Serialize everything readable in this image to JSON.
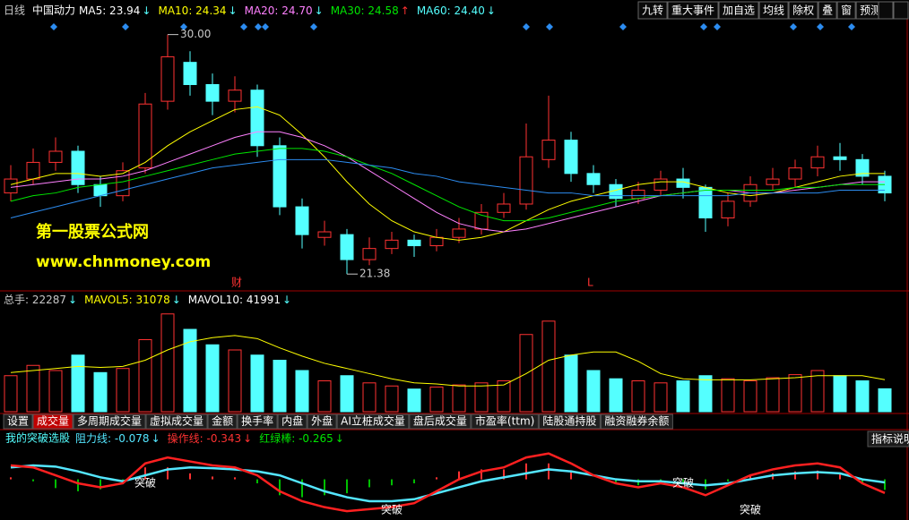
{
  "header": {
    "period": "日线",
    "stock": "中国动力",
    "ma": [
      {
        "label": "MA5: 23.94",
        "trend": "↓"
      },
      {
        "label": "MA10: 24.34",
        "trend": "↓"
      },
      {
        "label": "MA20: 24.70",
        "trend": "↓"
      },
      {
        "label": "MA30: 24.58",
        "trend": "↑"
      },
      {
        "label": "MA60: 24.40",
        "trend": "↓"
      }
    ]
  },
  "toolbar": [
    "九转",
    "重大事件",
    "加自选",
    "均线",
    "除权",
    "叠",
    "窗",
    "预测"
  ],
  "annotations": {
    "high": "30.00",
    "low": "21.38",
    "finance": "财",
    "marker": "L"
  },
  "watermark": {
    "name": "第一股票公式网",
    "url": "www.chnmoney.com"
  },
  "volume_header": [
    {
      "label": "总手: 22287",
      "trend": "↓"
    },
    {
      "label": "MAVOL5: 31078",
      "trend": "↓"
    },
    {
      "label": "MAVOL10: 41991",
      "trend": "↓"
    }
  ],
  "tabs": [
    "设置",
    "成交量",
    "多周期成交量",
    "虚拟成交量",
    "金额",
    "换手率",
    "内盘",
    "外盘",
    "AI立桩成交量",
    "盘后成交量",
    "市盈率(ttm)",
    "陆股通持股",
    "融资融券余额"
  ],
  "indicator_header": {
    "name": "我的突破选股",
    "items": [
      {
        "label": "阻力线: -0.078",
        "trend": "↓"
      },
      {
        "label": "操作线: -0.343",
        "trend": "↓"
      },
      {
        "label": "红绿棒: -0.265",
        "trend": "↓"
      }
    ],
    "help": "指标说明"
  },
  "signals": [
    "突破",
    "突破",
    "突破",
    "突破"
  ],
  "chart_data": [
    {
      "type": "candlestick",
      "ylim": [
        21.0,
        30.6
      ],
      "open": [
        24.3,
        24.8,
        25.4,
        25.8,
        24.6,
        24.2,
        25.2,
        27.6,
        29.0,
        28.2,
        27.6,
        28.0,
        26.0,
        23.8,
        22.7,
        22.8,
        21.9,
        22.3,
        22.6,
        22.4,
        22.7,
        23.0,
        23.6,
        23.9,
        25.5,
        26.2,
        25.0,
        24.6,
        24.1,
        24.4,
        24.8,
        24.5,
        23.4,
        24.0,
        24.6,
        24.8,
        25.2,
        25.6,
        25.5,
        24.9
      ],
      "high": [
        25.3,
        25.9,
        26.3,
        26.0,
        24.9,
        25.4,
        27.9,
        30.0,
        29.4,
        28.6,
        28.5,
        28.2,
        26.3,
        24.1,
        23.3,
        23.0,
        22.7,
        22.9,
        22.8,
        23.0,
        23.4,
        23.9,
        24.3,
        26.8,
        27.8,
        26.5,
        25.3,
        24.8,
        24.7,
        25.1,
        25.2,
        24.6,
        24.3,
        24.9,
        25.2,
        25.5,
        26.0,
        26.1,
        25.7,
        25.1
      ],
      "low": [
        24.0,
        24.6,
        25.1,
        24.3,
        23.8,
        24.0,
        25.0,
        27.3,
        27.8,
        27.1,
        27.2,
        25.6,
        23.5,
        22.3,
        22.4,
        21.38,
        21.7,
        22.1,
        22.0,
        22.2,
        22.5,
        22.8,
        23.4,
        23.7,
        25.2,
        24.7,
        24.3,
        23.8,
        23.9,
        24.2,
        24.1,
        22.9,
        23.1,
        23.8,
        24.4,
        24.5,
        24.9,
        25.1,
        24.6,
        24.0
      ],
      "close": [
        24.8,
        25.4,
        25.8,
        24.6,
        24.2,
        25.1,
        27.5,
        29.2,
        28.2,
        27.6,
        28.0,
        26.0,
        23.8,
        22.8,
        22.9,
        21.9,
        22.3,
        22.6,
        22.4,
        22.7,
        23.0,
        23.6,
        23.9,
        25.6,
        26.2,
        25.0,
        24.6,
        24.1,
        24.4,
        24.8,
        24.5,
        23.4,
        24.0,
        24.6,
        24.8,
        25.2,
        25.6,
        25.5,
        24.9,
        24.3
      ],
      "up_color": "#ff3232",
      "down_color": "#54ffff",
      "lines": [
        {
          "color": "#ffff00",
          "values": [
            24.6,
            24.8,
            25.0,
            25.0,
            24.9,
            25.0,
            25.4,
            26.0,
            26.5,
            26.9,
            27.3,
            27.4,
            27.1,
            26.4,
            25.6,
            24.7,
            23.9,
            23.3,
            22.9,
            22.7,
            22.6,
            22.7,
            22.9,
            23.3,
            23.7,
            24.0,
            24.2,
            24.4,
            24.6,
            24.7,
            24.7,
            24.5,
            24.3,
            24.2,
            24.3,
            24.5,
            24.7,
            24.9,
            25.0,
            25.0
          ]
        },
        {
          "color": "#ff80ff",
          "values": [
            24.5,
            24.6,
            24.7,
            24.8,
            24.8,
            24.9,
            25.1,
            25.4,
            25.7,
            26.0,
            26.3,
            26.5,
            26.5,
            26.3,
            26.0,
            25.6,
            25.1,
            24.6,
            24.1,
            23.6,
            23.2,
            23.0,
            22.9,
            23.0,
            23.2,
            23.4,
            23.6,
            23.8,
            24.0,
            24.2,
            24.3,
            24.4,
            24.4,
            24.3,
            24.3,
            24.4,
            24.5,
            24.6,
            24.7,
            24.7
          ]
        },
        {
          "color": "#00e600",
          "values": [
            24.0,
            24.2,
            24.3,
            24.5,
            24.6,
            24.7,
            24.9,
            25.1,
            25.3,
            25.5,
            25.7,
            25.8,
            25.9,
            25.9,
            25.8,
            25.6,
            25.3,
            25.0,
            24.6,
            24.2,
            23.8,
            23.5,
            23.3,
            23.3,
            23.4,
            23.6,
            23.8,
            24.0,
            24.1,
            24.2,
            24.3,
            24.4,
            24.4,
            24.4,
            24.4,
            24.5,
            24.5,
            24.6,
            24.6,
            24.6
          ]
        },
        {
          "color": "#2c8cf0",
          "values": [
            23.4,
            23.6,
            23.8,
            24.0,
            24.2,
            24.4,
            24.6,
            24.8,
            25.0,
            25.2,
            25.3,
            25.4,
            25.5,
            25.5,
            25.5,
            25.4,
            25.3,
            25.2,
            25.0,
            24.9,
            24.7,
            24.6,
            24.5,
            24.4,
            24.3,
            24.3,
            24.2,
            24.2,
            24.2,
            24.2,
            24.2,
            24.2,
            24.2,
            24.3,
            24.3,
            24.3,
            24.3,
            24.4,
            24.4,
            24.4
          ]
        }
      ]
    },
    {
      "type": "bar",
      "ylim": [
        0,
        100000
      ],
      "values": [
        35000,
        45000,
        40000,
        55000,
        38000,
        42000,
        70000,
        95000,
        80000,
        65000,
        60000,
        55000,
        50000,
        40000,
        30000,
        35000,
        28000,
        25000,
        22000,
        24000,
        26000,
        28000,
        30000,
        75000,
        88000,
        55000,
        40000,
        32000,
        30000,
        28000,
        30000,
        35000,
        32000,
        30000,
        33000,
        36000,
        40000,
        35000,
        30000,
        22287
      ],
      "lines": [
        {
          "color": "#ffff00",
          "values": [
            38000,
            40000,
            42000,
            44000,
            43000,
            44000,
            50000,
            60000,
            68000,
            72000,
            74000,
            71000,
            62000,
            54000,
            47000,
            42000,
            37000,
            32000,
            28000,
            27000,
            25000,
            25000,
            26000,
            37000,
            50000,
            55000,
            58000,
            58000,
            49000,
            37000,
            32000,
            31000,
            31000,
            31000,
            32000,
            33000,
            35000,
            35000,
            35000,
            31078
          ]
        }
      ]
    },
    {
      "type": "line",
      "ylim": [
        -1.0,
        0.8
      ],
      "series": [
        {
          "color": "#54e6ff",
          "values": [
            0.3,
            0.35,
            0.32,
            0.2,
            0.05,
            -0.05,
            0.1,
            0.25,
            0.3,
            0.28,
            0.25,
            0.2,
            0.1,
            -0.1,
            -0.3,
            -0.45,
            -0.55,
            -0.55,
            -0.5,
            -0.35,
            -0.2,
            -0.05,
            0.05,
            0.15,
            0.25,
            0.2,
            0.1,
            0.0,
            -0.05,
            -0.05,
            -0.1,
            -0.15,
            -0.1,
            0.0,
            0.1,
            0.15,
            0.18,
            0.15,
            0.0,
            -0.078
          ]
        },
        {
          "color": "#ff2020",
          "values": [
            0.35,
            0.3,
            0.1,
            -0.1,
            -0.2,
            -0.1,
            0.4,
            0.55,
            0.45,
            0.35,
            0.3,
            0.1,
            -0.3,
            -0.55,
            -0.7,
            -0.8,
            -0.75,
            -0.7,
            -0.6,
            -0.3,
            0.0,
            0.2,
            0.3,
            0.55,
            0.65,
            0.4,
            0.1,
            -0.1,
            -0.2,
            -0.1,
            -0.2,
            -0.4,
            -0.15,
            0.1,
            0.25,
            0.35,
            0.4,
            0.3,
            -0.1,
            -0.343
          ]
        }
      ],
      "bars": [
        0.05,
        -0.05,
        -0.22,
        -0.3,
        -0.25,
        -0.05,
        0.3,
        0.3,
        0.15,
        0.07,
        0.05,
        -0.1,
        -0.4,
        -0.45,
        -0.4,
        -0.35,
        -0.2,
        -0.15,
        -0.1,
        0.05,
        0.2,
        0.25,
        0.25,
        0.4,
        0.4,
        0.2,
        0.0,
        -0.1,
        -0.15,
        -0.05,
        -0.1,
        -0.25,
        -0.05,
        0.1,
        0.15,
        0.2,
        0.22,
        0.15,
        -0.1,
        -0.265
      ],
      "bar_colors": [
        "#ff3232",
        "#00c000"
      ]
    }
  ]
}
